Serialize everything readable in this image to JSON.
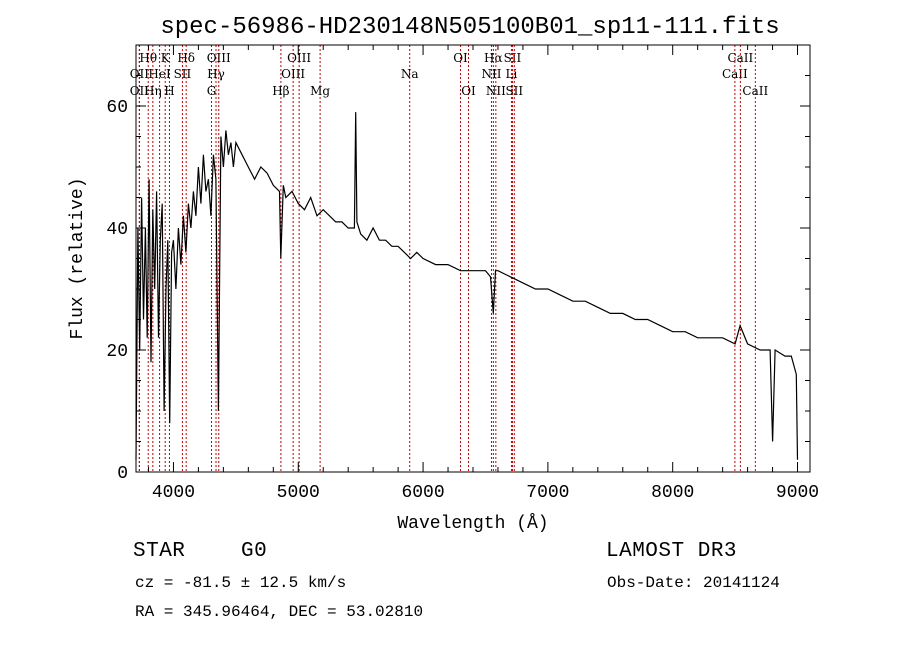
{
  "chart_data": {
    "type": "line",
    "title": "spec-56986-HD230148N505100B01_sp11-111.fits",
    "xlabel": "Wavelength (Å)",
    "ylabel": "Flux (relative)",
    "xlim": [
      3700,
      9100
    ],
    "ylim": [
      0,
      70
    ],
    "xticks": [
      4000,
      5000,
      6000,
      7000,
      8000,
      9000
    ],
    "yticks": [
      0,
      20,
      40,
      60
    ],
    "xtick_labels": [
      "4000",
      "5000",
      "6000",
      "7000",
      "8000",
      "9000"
    ],
    "ytick_labels": [
      "0",
      "20",
      "40",
      "60"
    ],
    "series": [
      {
        "name": "flux",
        "x": [
          3700,
          3715,
          3730,
          3745,
          3760,
          3775,
          3790,
          3805,
          3820,
          3835,
          3850,
          3865,
          3880,
          3895,
          3910,
          3925,
          3940,
          3955,
          3970,
          3985,
          4000,
          4020,
          4040,
          4060,
          4080,
          4100,
          4120,
          4140,
          4160,
          4180,
          4200,
          4220,
          4240,
          4260,
          4280,
          4300,
          4320,
          4340,
          4360,
          4380,
          4400,
          4420,
          4440,
          4460,
          4480,
          4500,
          4550,
          4600,
          4650,
          4700,
          4750,
          4800,
          4850,
          4860,
          4880,
          4900,
          4950,
          5000,
          5050,
          5100,
          5150,
          5200,
          5250,
          5300,
          5350,
          5400,
          5450,
          5460,
          5470,
          5500,
          5550,
          5600,
          5650,
          5700,
          5750,
          5800,
          5850,
          5900,
          5950,
          6000,
          6100,
          6200,
          6300,
          6400,
          6500,
          6540,
          6563,
          6580,
          6600,
          6700,
          6800,
          6900,
          7000,
          7100,
          7200,
          7300,
          7400,
          7500,
          7600,
          7700,
          7800,
          7900,
          8000,
          8100,
          8200,
          8300,
          8400,
          8500,
          8540,
          8600,
          8700,
          8780,
          8800,
          8820,
          8900,
          8950,
          8990,
          9000
        ],
        "y": [
          2,
          40,
          20,
          45,
          25,
          40,
          22,
          48,
          18,
          43,
          30,
          46,
          22,
          38,
          44,
          10,
          30,
          38,
          8,
          36,
          38,
          30,
          40,
          34,
          42,
          36,
          44,
          40,
          46,
          42,
          50,
          44,
          52,
          46,
          48,
          42,
          52,
          48,
          10,
          55,
          50,
          56,
          52,
          54,
          50,
          54,
          52,
          50,
          48,
          50,
          49,
          47,
          46,
          35,
          47,
          45,
          46,
          44,
          43,
          45,
          42,
          43,
          42,
          41,
          41,
          40,
          40,
          59,
          41,
          39,
          38,
          40,
          38,
          38,
          37,
          37,
          36,
          35,
          36,
          35,
          34,
          34,
          33,
          33,
          33,
          32,
          26,
          33,
          33,
          32,
          31,
          30,
          30,
          29,
          28,
          28,
          27,
          26,
          26,
          25,
          25,
          24,
          23,
          23,
          22,
          22,
          22,
          21,
          24,
          21,
          20,
          20,
          5,
          20,
          19,
          19,
          16,
          2
        ]
      }
    ],
    "line_markers": [
      {
        "name": "OII",
        "wavelength": 3727,
        "row": 2
      },
      {
        "name": "OII",
        "wavelength": 3727,
        "row": 3
      },
      {
        "name": "Hθ",
        "wavelength": 3798,
        "row": 1
      },
      {
        "name": "Hη",
        "wavelength": 3835,
        "row": 3
      },
      {
        "name": "HeI",
        "wavelength": 3889,
        "row": 2
      },
      {
        "name": "K",
        "wavelength": 3934,
        "row": 1
      },
      {
        "name": "H",
        "wavelength": 3968,
        "row": 3
      },
      {
        "name": "SII",
        "wavelength": 4072,
        "row": 2
      },
      {
        "name": "Hδ",
        "wavelength": 4102,
        "row": 1
      },
      {
        "name": "G",
        "wavelength": 4305,
        "row": 3
      },
      {
        "name": "Hγ",
        "wavelength": 4341,
        "row": 2
      },
      {
        "name": "OIII",
        "wavelength": 4363,
        "row": 1
      },
      {
        "name": "Hβ",
        "wavelength": 4861,
        "row": 3
      },
      {
        "name": "OIII",
        "wavelength": 4959,
        "row": 2
      },
      {
        "name": "OIII",
        "wavelength": 5007,
        "row": 1
      },
      {
        "name": "Mg",
        "wavelength": 5175,
        "row": 3
      },
      {
        "name": "Na",
        "wavelength": 5893,
        "row": 2
      },
      {
        "name": "OI",
        "wavelength": 6300,
        "row": 1
      },
      {
        "name": "OI",
        "wavelength": 6364,
        "row": 3
      },
      {
        "name": "NII",
        "wavelength": 6548,
        "row": 2
      },
      {
        "name": "Hα",
        "wavelength": 6563,
        "row": 1
      },
      {
        "name": "NII",
        "wavelength": 6583,
        "row": 3
      },
      {
        "name": "SII",
        "wavelength": 6716,
        "row": 1
      },
      {
        "name": "Li",
        "wavelength": 6708,
        "row": 2
      },
      {
        "name": "SII",
        "wavelength": 6731,
        "row": 3
      },
      {
        "name": "CaII",
        "wavelength": 8498,
        "row": 2
      },
      {
        "name": "CaII",
        "wavelength": 8542,
        "row": 1
      },
      {
        "name": "CaII",
        "wavelength": 8662,
        "row": 3
      }
    ]
  },
  "info": {
    "object_class": "STAR",
    "subclass": "G0",
    "survey": "LAMOST DR3",
    "redshift": "cz = -81.5 ± 12.5 km/s",
    "obs_date": "Obs-Date: 20141124",
    "coords": "RA = 345.96464, DEC =  53.02810"
  }
}
